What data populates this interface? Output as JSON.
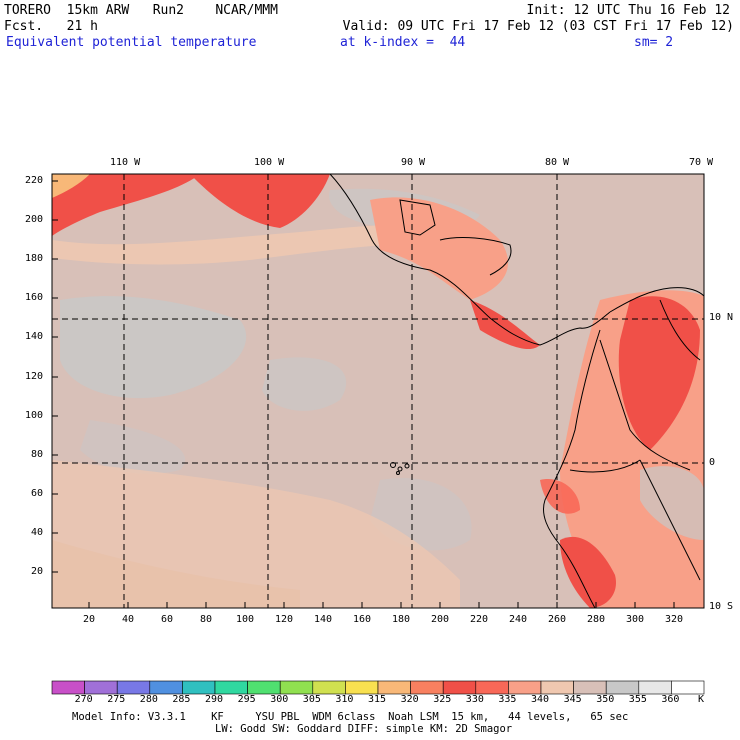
{
  "header": {
    "model": "TORERO  15km ARW   Run2    NCAR/MMM",
    "init": "Init: 12 UTC Thu 16 Feb 12",
    "fcst": "Fcst.   21 h",
    "valid": "Valid: 09 UTC Fri 17 Feb 12 (03 CST Fri 17 Feb 12)",
    "field": "Equivalent potential temperature",
    "level": "at k-index =  44",
    "smooth": "sm= 2"
  },
  "map": {
    "longitude_labels": [
      "110 W",
      "100 W",
      "90 W",
      "80 W",
      "70 W"
    ],
    "latitude_labels": [
      "10 N",
      "0",
      "10 S"
    ],
    "y_ticks": [
      "220",
      "200",
      "180",
      "160",
      "140",
      "120",
      "100",
      "80",
      "60",
      "40",
      "20"
    ],
    "x_ticks": [
      "20",
      "40",
      "60",
      "80",
      "100",
      "120",
      "140",
      "160",
      "180",
      "200",
      "220",
      "240",
      "260",
      "280",
      "300",
      "320"
    ],
    "grid_style": "dashed",
    "dominant_value_range": "345-350 K over ocean",
    "warm_regions": "330-340 K over land and coastal areas"
  },
  "colorbar": {
    "levels": [
      "270",
      "275",
      "280",
      "285",
      "290",
      "295",
      "300",
      "305",
      "310",
      "315",
      "320",
      "325",
      "330",
      "335",
      "340",
      "345",
      "350",
      "355",
      "360"
    ],
    "unit": "K",
    "colors": [
      "#c850c8",
      "#a070d8",
      "#7878e6",
      "#5090e0",
      "#30c0c0",
      "#30d8a0",
      "#50e070",
      "#90e050",
      "#d0e050",
      "#f8e050",
      "#f8b878",
      "#f88060",
      "#f05048",
      "#f86858",
      "#f8a088",
      "#f0c8b0",
      "#d8c0b8",
      "#c8c8c8",
      "#e8e8e8",
      "#ffffff"
    ]
  },
  "footer": {
    "line1": "Model Info: V3.3.1    KF     YSU PBL  WDM 6class  Noah LSM  15 km,   44 levels,   65 sec",
    "line2": "LW: Godd SW: Goddard DIFF: simple KM: 2D Smagor"
  }
}
